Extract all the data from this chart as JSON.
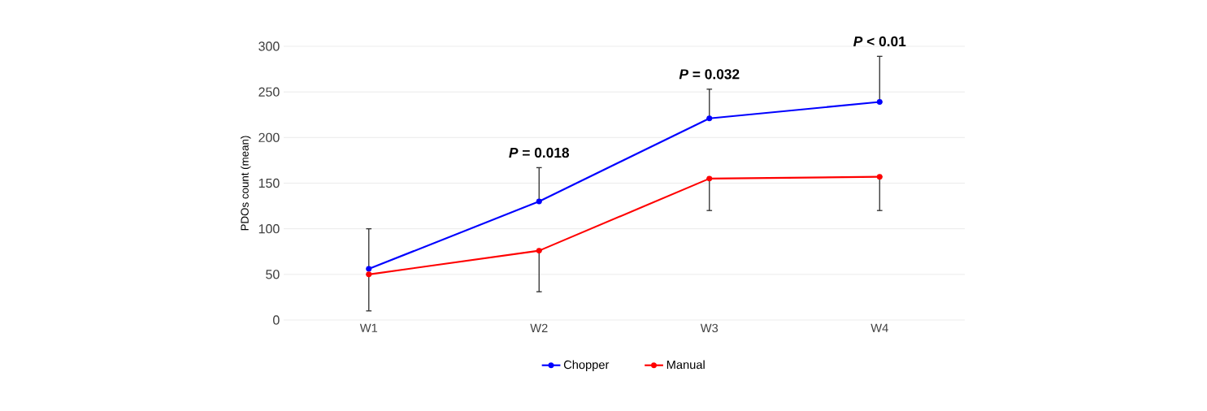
{
  "chart_data": {
    "type": "line",
    "ylabel": "PDOs count (mean)",
    "categories": [
      "W1",
      "W2",
      "W3",
      "W4"
    ],
    "series": [
      {
        "name": "Chopper",
        "color": "#0000ff",
        "values": [
          56,
          130,
          221,
          239
        ],
        "errors": [
          [
            56,
            100
          ],
          [
            130,
            167
          ],
          [
            221,
            253
          ],
          [
            239,
            289
          ]
        ]
      },
      {
        "name": "Manual",
        "color": "#ff0000",
        "values": [
          50,
          76,
          155,
          157
        ],
        "errors": [
          [
            10,
            50
          ],
          [
            31,
            76
          ],
          [
            120,
            155
          ],
          [
            120,
            157
          ]
        ]
      }
    ],
    "ylim": [
      0,
      300
    ],
    "yticks": [
      0,
      50,
      100,
      150,
      200,
      250,
      300
    ],
    "grid": "y",
    "legend": "bottom",
    "marker": "circle",
    "line_style": "solid",
    "annotations": [
      {
        "text": "*P* = 0.018",
        "x": "W2",
        "y": 167
      },
      {
        "text": "*P* = 0.032",
        "x": "W3",
        "y": 253
      },
      {
        "text": "*P* < 0.01",
        "x": "W4",
        "y": 289
      }
    ]
  }
}
